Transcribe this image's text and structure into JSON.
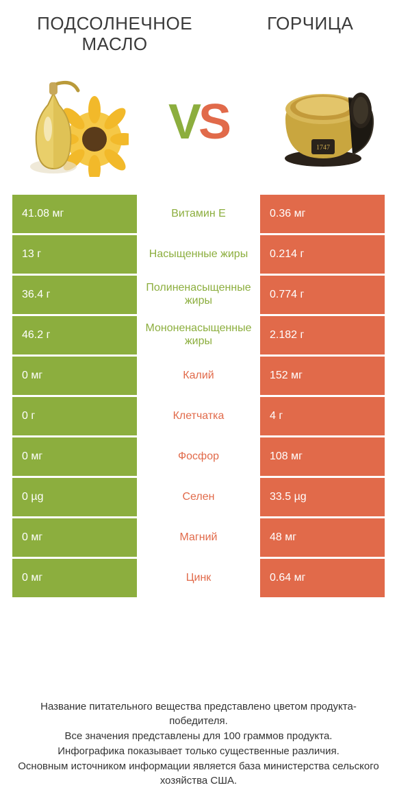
{
  "colors": {
    "green": "#8cae3e",
    "orange": "#e16a4a",
    "text": "#3a3a3a",
    "white": "#ffffff"
  },
  "titles": {
    "left": "Подсолнечное масло",
    "right": "Горчица"
  },
  "vs": {
    "v": "V",
    "s": "S"
  },
  "rows": [
    {
      "label": "Витамин E",
      "left": "41.08 мг",
      "right": "0.36 мг",
      "winner": "left"
    },
    {
      "label": "Насыщенные жиры",
      "left": "13 г",
      "right": "0.214 г",
      "winner": "left"
    },
    {
      "label": "Полиненасыщенные жиры",
      "left": "36.4 г",
      "right": "0.774 г",
      "winner": "left"
    },
    {
      "label": "Мононенасыщенные жиры",
      "left": "46.2 г",
      "right": "2.182 г",
      "winner": "left"
    },
    {
      "label": "Калий",
      "left": "0 мг",
      "right": "152 мг",
      "winner": "right"
    },
    {
      "label": "Клетчатка",
      "left": "0 г",
      "right": "4 г",
      "winner": "right"
    },
    {
      "label": "Фосфор",
      "left": "0 мг",
      "right": "108 мг",
      "winner": "right"
    },
    {
      "label": "Селен",
      "left": "0 µg",
      "right": "33.5 µg",
      "winner": "right"
    },
    {
      "label": "Магний",
      "left": "0 мг",
      "right": "48 мг",
      "winner": "right"
    },
    {
      "label": "Цинк",
      "left": "0 мг",
      "right": "0.64 мг",
      "winner": "right"
    }
  ],
  "footer": [
    "Название питательного вещества представлено цветом продукта-победителя.",
    "Все значения представлены для 100 граммов продукта.",
    "Инфографика показывает только существенные различия.",
    "Основным источником информации является база министерства сельского хозяйства США."
  ]
}
